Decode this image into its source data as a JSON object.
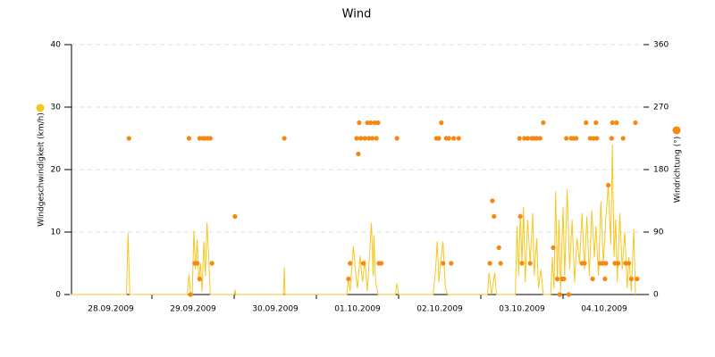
{
  "chart_data": {
    "type": "line-scatter",
    "title": "Wind",
    "y_label": "Windgeschwindigkeit (km/h)",
    "y2_label": "Windrichtung (°)",
    "xlim": [
      0,
      7
    ],
    "xticks": [
      {
        "value": 0,
        "label": "28.09.2009"
      },
      {
        "value": 1,
        "label": "29.09.2009"
      },
      {
        "value": 2,
        "label": "30.09.2009"
      },
      {
        "value": 3,
        "label": "01.10.2009"
      },
      {
        "value": 4,
        "label": "02.10.2009"
      },
      {
        "value": 5,
        "label": "03.10.2009"
      },
      {
        "value": 6,
        "label": "04.10.2009"
      }
    ],
    "ylim": [
      0,
      40
    ],
    "yticks": [
      0,
      10,
      20,
      30,
      40
    ],
    "y2lim": [
      0,
      360
    ],
    "y2ticks": [
      0,
      90,
      180,
      270,
      360
    ],
    "grid": true,
    "series": [
      {
        "type": "line",
        "color": "#f8c61e",
        "x": [
          0,
          0.69,
          0.71,
          0.73,
          1.43,
          1.45,
          1.47,
          1.49,
          1.51,
          1.53,
          1.55,
          1.57,
          1.59,
          1.61,
          1.63,
          1.65,
          1.67,
          1.69,
          1.71,
          2.0,
          2.01,
          2.02,
          2.6,
          2.61,
          2.62,
          3.37,
          3.39,
          3.41,
          3.45,
          3.48,
          3.5,
          3.53,
          3.56,
          3.59,
          3.62,
          3.65,
          3.67,
          3.69,
          3.7,
          3.72,
          3.75,
          3.96,
          3.98,
          4.0,
          4.42,
          4.45,
          4.47,
          4.49,
          4.51,
          4.54,
          4.57,
          4.6,
          5.08,
          5.1,
          5.13,
          5.17,
          5.19,
          5.42,
          5.44,
          5.46,
          5.48,
          5.5,
          5.52,
          5.54,
          5.57,
          5.6,
          5.63,
          5.65,
          5.68,
          5.7,
          5.73,
          5.76,
          5.85,
          5.87,
          5.89,
          5.91,
          5.93,
          5.95,
          5.97,
          6.0,
          6.02,
          6.05,
          6.08,
          6.11,
          6.14,
          6.17,
          6.2,
          6.23,
          6.26,
          6.29,
          6.32,
          6.35,
          6.38,
          6.4,
          6.43,
          6.46,
          6.49,
          6.52,
          6.55,
          6.58,
          6.6,
          6.62,
          6.64,
          6.66,
          6.69,
          6.72,
          6.75,
          6.78,
          6.8,
          6.83,
          6.86,
          6.88
        ],
        "values": [
          0,
          0,
          9.8,
          0,
          0,
          3.2,
          0,
          0,
          10.2,
          4,
          8.8,
          2,
          5,
          0.5,
          8.5,
          3,
          11.5,
          6,
          0,
          0,
          0.8,
          0,
          0,
          4.3,
          0,
          0,
          2.5,
          0.5,
          7.7,
          3,
          1,
          6.2,
          2,
          5.5,
          0.5,
          7.3,
          11.5,
          3,
          9.5,
          2,
          0,
          0,
          1.8,
          0,
          0,
          4,
          8.5,
          2,
          5,
          8.5,
          1,
          0,
          0,
          3.5,
          0,
          3.5,
          0,
          0,
          11,
          3,
          13,
          5,
          14,
          2,
          12,
          5,
          13,
          3,
          9,
          1,
          4,
          0,
          0,
          6,
          1,
          16.5,
          2,
          12,
          0.5,
          14,
          3,
          16.8,
          4,
          12,
          2,
          9,
          5,
          13,
          4,
          12.5,
          3,
          13.5,
          6,
          11,
          3,
          15,
          5,
          12,
          17.5,
          8,
          24,
          6,
          12,
          2,
          13,
          4,
          10,
          1,
          6,
          0.5,
          10.5,
          0
        ]
      },
      {
        "type": "scatter",
        "axis": "y2",
        "color": "#f7870f",
        "x": [
          0.72,
          1.45,
          1.47,
          1.52,
          1.55,
          1.58,
          1.58,
          1.62,
          1.65,
          1.68,
          1.71,
          1.73,
          2.01,
          2.61,
          3.39,
          3.41,
          3.49,
          3.51,
          3.52,
          3.54,
          3.57,
          3.59,
          3.62,
          3.64,
          3.66,
          3.68,
          3.71,
          3.73,
          3.75,
          3.76,
          3.79,
          3.98,
          4.46,
          4.49,
          4.52,
          4.54,
          4.58,
          4.61,
          4.64,
          4.67,
          4.73,
          5.11,
          5.14,
          5.16,
          5.22,
          5.24,
          5.47,
          5.48,
          5.5,
          5.53,
          5.57,
          5.6,
          5.62,
          5.65,
          5.68,
          5.72,
          5.76,
          5.88,
          5.93,
          5.96,
          5.99,
          6.01,
          6.04,
          6.07,
          6.1,
          6.13,
          6.16,
          6.23,
          6.26,
          6.28,
          6.33,
          6.36,
          6.37,
          6.4,
          6.41,
          6.45,
          6.48,
          6.51,
          6.52,
          6.55,
          6.59,
          6.6,
          6.63,
          6.65,
          6.67,
          6.73,
          6.76,
          6.8,
          6.83,
          6.88,
          6.9
        ],
        "values": [
          225,
          225,
          0,
          45,
          45,
          22.5,
          225,
          225,
          225,
          225,
          225,
          45,
          112.5,
          225,
          22.5,
          45,
          225,
          202.5,
          247.5,
          225,
          45,
          225,
          247.5,
          225,
          247.5,
          225,
          247.5,
          225,
          247.5,
          45,
          45,
          225,
          225,
          225,
          247.5,
          45,
          225,
          225,
          45,
          225,
          225,
          45,
          135,
          112.5,
          67.5,
          45,
          225,
          112.5,
          45,
          225,
          225,
          45,
          225,
          225,
          225,
          225,
          247.5,
          67.5,
          22.5,
          0,
          22.5,
          22.5,
          225,
          0,
          225,
          225,
          225,
          45,
          45,
          247.5,
          225,
          22.5,
          225,
          247.5,
          225,
          45,
          45,
          22.5,
          45,
          157.5,
          225,
          247.5,
          45,
          247.5,
          45,
          225,
          45,
          45,
          22.5,
          247.5,
          22.5
        ]
      }
    ]
  }
}
